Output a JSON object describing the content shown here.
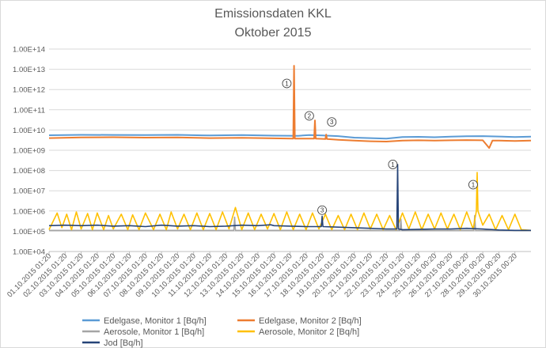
{
  "chart_data": {
    "type": "line",
    "title": "Emissionsdaten KKL",
    "subtitle": "Oktober 2015",
    "y_scale": "log",
    "ylim": [
      10000,
      100000000000000
    ],
    "y_ticks": [
      "1.00E+04",
      "1.00E+05",
      "1.00E+06",
      "1.00E+07",
      "1.00E+08",
      "1.00E+09",
      "1.00E+10",
      "1.00E+11",
      "1.00E+12",
      "1.00E+13",
      "1.00E+14"
    ],
    "x_ticks": [
      "01.10.2015 01:20",
      "02.10.2015 01:20",
      "03.10.2015 01:20",
      "04.10.2015 01:20",
      "05.10.2015 01:20",
      "06.10.2015 01:20",
      "07.10.2015 01:20",
      "08.10.2015 01:20",
      "09.10.2015 01:20",
      "10.10.2015 01:20",
      "11.10.2015 01:20",
      "12.10.2015 01:20",
      "13.10.2015 01:20",
      "14.10.2015 01:20",
      "15.10.2015 01:20",
      "16.10.2015 01:20",
      "17.10.2015 01:20",
      "18.10.2015 01:20",
      "19.10.2015 01:20",
      "20.10.2015 01:20",
      "21.10.2015 01:20",
      "22.10.2015 01:20",
      "23.10.2015 01:20",
      "24.10.2015 01:20",
      "25.10.2015 00:20",
      "26.10.2015 00:20",
      "27.10.2015 00:20",
      "28.10.2015 00:20",
      "29.10.2015 00:20",
      "30.10.2015 00:20"
    ],
    "grid": true,
    "legend_position": "bottom",
    "series": [
      {
        "name": "Edelgase, Monitor 1 [Bq/h]",
        "color": "#5B9BD5",
        "x": [
          1,
          3,
          5,
          7,
          9,
          11,
          13,
          15,
          16.5,
          17.2,
          18,
          19,
          20,
          21,
          22,
          23,
          24,
          25,
          26,
          27,
          28,
          29,
          30,
          31
        ],
        "y": [
          5500000000,
          5800000000,
          5700000000,
          5600000000,
          5800000000,
          5400000000,
          5600000000,
          5300000000,
          5200000000,
          5600000000,
          5400000000,
          5000000000,
          4200000000,
          4000000000,
          3800000000,
          4500000000,
          4600000000,
          4400000000,
          4700000000,
          4900000000,
          5000000000,
          4800000000,
          4500000000,
          4700000000
        ]
      },
      {
        "name": "Edelgase, Monitor 2 [Bq/h]",
        "color": "#ED7D31",
        "x": [
          1,
          3,
          5,
          7,
          9,
          11,
          13,
          15,
          16.2,
          16.25,
          16.3,
          17.5,
          17.55,
          17.6,
          18.2,
          18.25,
          18.3,
          19,
          20,
          21,
          22,
          23,
          24,
          25,
          26,
          27,
          28,
          28.4,
          28.6,
          29,
          30,
          31
        ],
        "y": [
          4000000000,
          4300000000,
          4400000000,
          4200000000,
          4300000000,
          4000000000,
          4100000000,
          3900000000,
          3800000000,
          15000000000000,
          3800000000,
          3800000000,
          30000000000,
          3800000000,
          3600000000,
          6000000000,
          3600000000,
          3300000000,
          3000000000,
          2800000000,
          2700000000,
          3000000000,
          3100000000,
          3000000000,
          3100000000,
          3200000000,
          3100000000,
          1300000000,
          3000000000,
          3000000000,
          2900000000,
          3000000000
        ]
      },
      {
        "name": "Aerosole, Monitor 1 [Bq/h]",
        "color": "#A5A5A5",
        "x": [
          1,
          5,
          10,
          12.5,
          12.55,
          12.6,
          15,
          20,
          22.85,
          22.9,
          22.95,
          25,
          27.45,
          27.5,
          27.55,
          29,
          31
        ],
        "y": [
          110000,
          110000,
          110000,
          110000,
          500000,
          110000,
          110000,
          110000,
          110000,
          400000,
          110000,
          110000,
          110000,
          600000,
          110000,
          110000,
          110000
        ]
      },
      {
        "name": "Aerosole, Monitor 2 [Bq/h]",
        "color": "#FFC000",
        "x": [
          1,
          1.5,
          1.8,
          2.1,
          2.4,
          2.7,
          3,
          3.4,
          3.7,
          4,
          4.4,
          4.7,
          5,
          5.5,
          5.9,
          6.2,
          6.6,
          7,
          7.5,
          7.9,
          8.3,
          8.6,
          9,
          9.4,
          9.8,
          10.2,
          10.6,
          11,
          11.4,
          11.8,
          12.2,
          12.6,
          13,
          13.4,
          13.8,
          14.2,
          14.6,
          15,
          15.4,
          15.8,
          16.2,
          16.6,
          17,
          17.4,
          17.8,
          18.2,
          18.6,
          19,
          19.4,
          19.8,
          20.2,
          20.6,
          21,
          21.4,
          21.8,
          22.2,
          22.6,
          23,
          23.4,
          23.8,
          24.2,
          24.6,
          25,
          25.4,
          25.8,
          26.2,
          26.6,
          27,
          27.4,
          27.6,
          27.65,
          27.7,
          28,
          28.4,
          28.8,
          29.2,
          29.6,
          30,
          30.4,
          31
        ],
        "y": [
          120000,
          800000,
          150000,
          700000,
          120000,
          900000,
          130000,
          750000,
          120000,
          800000,
          120000,
          600000,
          130000,
          700000,
          120000,
          650000,
          120000,
          800000,
          120000,
          700000,
          120000,
          900000,
          130000,
          700000,
          120000,
          800000,
          120000,
          750000,
          120000,
          900000,
          130000,
          1500000,
          120000,
          800000,
          120000,
          700000,
          130000,
          750000,
          120000,
          900000,
          120000,
          700000,
          120000,
          800000,
          130000,
          700000,
          120000,
          600000,
          120000,
          700000,
          120000,
          800000,
          130000,
          700000,
          120000,
          600000,
          120000,
          800000,
          130000,
          900000,
          120000,
          700000,
          130000,
          800000,
          130000,
          700000,
          120000,
          900000,
          130000,
          1000000,
          80000000,
          1000000,
          200000,
          700000,
          120000,
          600000,
          120000,
          700000,
          120000,
          110000
        ]
      },
      {
        "name": "Jod [Bq/h]",
        "color": "#264478",
        "x": [
          1,
          2,
          3,
          4,
          5,
          6,
          7,
          8,
          9,
          10,
          11,
          12,
          13,
          14,
          14.8,
          15,
          16,
          17,
          17.95,
          18,
          18.05,
          19,
          20,
          21,
          22,
          22.65,
          22.7,
          22.75,
          23,
          24,
          25,
          26,
          27,
          28,
          29,
          30,
          31
        ],
        "y": [
          190000,
          200000,
          190000,
          200000,
          180000,
          190000,
          170000,
          200000,
          180000,
          190000,
          170000,
          180000,
          200000,
          190000,
          210000,
          190000,
          180000,
          170000,
          170000,
          550000,
          170000,
          160000,
          150000,
          140000,
          130000,
          130000,
          200000000,
          130000,
          120000,
          125000,
          130000,
          130000,
          140000,
          130000,
          115000,
          110000,
          110000
        ]
      }
    ],
    "annotations": [
      {
        "text": "①",
        "x": 15.8,
        "y": 2000000000000,
        "series": "Edelgase, Monitor 2 [Bq/h]"
      },
      {
        "text": "②",
        "x": 17.2,
        "y": 50000000000,
        "series": "Edelgase, Monitor 2 [Bq/h]"
      },
      {
        "text": "③",
        "x": 18.6,
        "y": 25000000000,
        "series": "Edelgase, Monitor 1 [Bq/h]"
      },
      {
        "text": "①",
        "x": 22.4,
        "y": 200000000,
        "series": "Jod [Bq/h]"
      },
      {
        "text": "③",
        "x": 18.0,
        "y": 1100000,
        "series": "Jod [Bq/h]"
      },
      {
        "text": "①",
        "x": 27.4,
        "y": 20000000,
        "series": "Aerosole, Monitor 2 [Bq/h]"
      }
    ]
  }
}
